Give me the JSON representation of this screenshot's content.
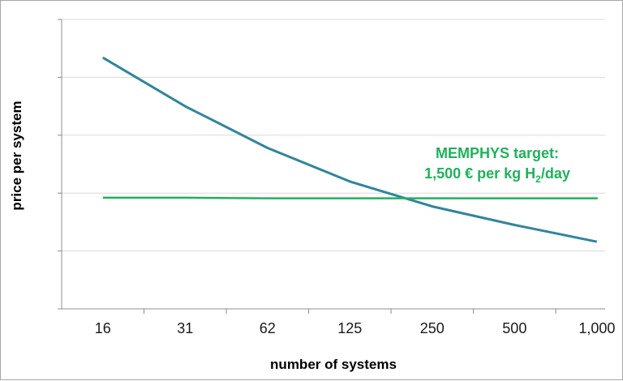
{
  "chart_data": {
    "type": "line",
    "title": "",
    "xlabel": "number of systems",
    "ylabel": "price per system",
    "categories": [
      "16",
      "31",
      "62",
      "125",
      "250",
      "500",
      "1,000"
    ],
    "ylim": [
      0,
      5
    ],
    "y_ticks": [
      0,
      1,
      2,
      3,
      4,
      5
    ],
    "y_tick_labels_shown": false,
    "grid": "horizontal",
    "series": [
      {
        "name": "",
        "color": "#31859c",
        "values": [
          4.34,
          3.5,
          2.78,
          2.2,
          1.77,
          1.45,
          1.16
        ]
      },
      {
        "name": "",
        "color": "#1fb25a",
        "values": [
          1.92,
          1.92,
          1.91,
          1.91,
          1.91,
          1.91,
          1.91
        ],
        "extends_to_axis_end": true
      }
    ],
    "annotation": {
      "line1": "MEMPHYS target:",
      "line2_main": "1,500 € per kg H",
      "line2_sub": "2",
      "line2_end": "/day",
      "color": "#1fb25a"
    }
  }
}
